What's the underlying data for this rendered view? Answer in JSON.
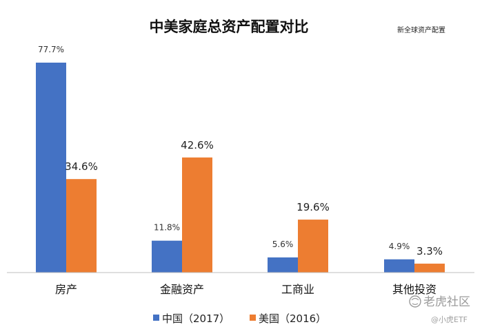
{
  "chart_data": {
    "type": "bar",
    "title": "中美家庭总资产配置对比",
    "source_note": "新全球资产配置",
    "categories": [
      "房产",
      "金融资产",
      "工商业",
      "其他投资"
    ],
    "series": [
      {
        "name": "中国（2017）",
        "values": [
          77.7,
          11.8,
          5.6,
          4.9
        ],
        "labels": [
          "77.7%",
          "11.8%",
          "5.6%",
          "4.9%"
        ],
        "color": "#4472c4"
      },
      {
        "name": "美国（2016）",
        "values": [
          34.6,
          42.6,
          19.6,
          3.3
        ],
        "labels": [
          "34.6%",
          "42.6%",
          "19.6%",
          "3.3%"
        ],
        "color": "#ed7d31"
      }
    ],
    "ylim": [
      0,
      77.7
    ],
    "grid": false,
    "legend_position": "bottom",
    "xlabel": "",
    "ylabel": ""
  },
  "watermark": {
    "brand": "老虎社区",
    "account": "@小虎ETF"
  },
  "colors": {
    "axis": "#bfbfbf",
    "watermark": "#9a9a9a"
  }
}
